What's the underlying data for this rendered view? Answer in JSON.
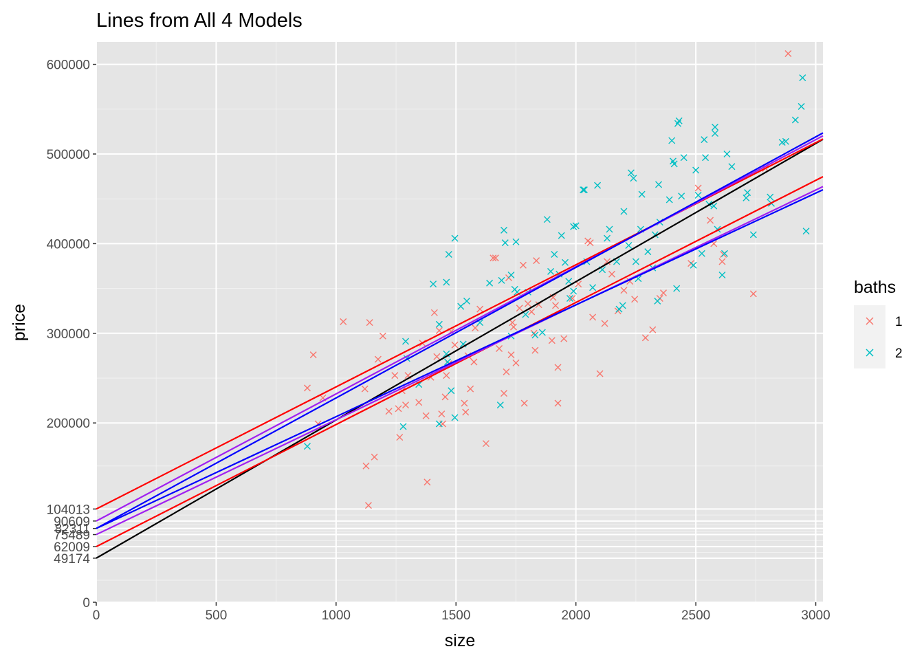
{
  "chart_data": {
    "type": "scatter",
    "title": "Lines from All 4 Models",
    "xlabel": "size",
    "ylabel": "price",
    "xlim": [
      0,
      3030
    ],
    "ylim": [
      0,
      625000
    ],
    "x_ticks": [
      0,
      500,
      1000,
      1500,
      2000,
      2500,
      3000
    ],
    "y_ticks": [
      0,
      200000,
      300000,
      400000,
      500000,
      600000
    ],
    "y_extra_ticks": [
      49174,
      62009,
      75489,
      82311,
      90609,
      104013
    ],
    "grid": true,
    "background": "#e5e5e5",
    "marker": "x",
    "legend": {
      "title": "baths",
      "placement": "right",
      "entries": [
        {
          "label": "1",
          "color": "#f8766d"
        },
        {
          "label": "2",
          "color": "#00bfc4"
        }
      ]
    },
    "series": [
      {
        "name": "1",
        "color": "#f8766d",
        "points": [
          [
            880,
            239000
          ],
          [
            905,
            276000
          ],
          [
            925,
            199000
          ],
          [
            945,
            228000
          ],
          [
            1030,
            313000
          ],
          [
            1120,
            238000
          ],
          [
            1125,
            152000
          ],
          [
            1135,
            108000
          ],
          [
            1140,
            312000
          ],
          [
            1160,
            162000
          ],
          [
            1175,
            271000
          ],
          [
            1195,
            297000
          ],
          [
            1220,
            213000
          ],
          [
            1245,
            253000
          ],
          [
            1260,
            216000
          ],
          [
            1265,
            184000
          ],
          [
            1275,
            236000
          ],
          [
            1290,
            220000
          ],
          [
            1300,
            253000
          ],
          [
            1345,
            223000
          ],
          [
            1360,
            289000
          ],
          [
            1375,
            208000
          ],
          [
            1380,
            134000
          ],
          [
            1395,
            251000
          ],
          [
            1410,
            323000
          ],
          [
            1420,
            274000
          ],
          [
            1430,
            303000
          ],
          [
            1440,
            210000
          ],
          [
            1445,
            199000
          ],
          [
            1455,
            229000
          ],
          [
            1460,
            253000
          ],
          [
            1470,
            266000
          ],
          [
            1480,
            302000
          ],
          [
            1495,
            287000
          ],
          [
            1535,
            222000
          ],
          [
            1540,
            212000
          ],
          [
            1550,
            275000
          ],
          [
            1560,
            238000
          ],
          [
            1575,
            268000
          ],
          [
            1580,
            306000
          ],
          [
            1600,
            327000
          ],
          [
            1625,
            177000
          ],
          [
            1655,
            384000
          ],
          [
            1665,
            384000
          ],
          [
            1680,
            283000
          ],
          [
            1700,
            233000
          ],
          [
            1710,
            257000
          ],
          [
            1720,
            362000
          ],
          [
            1730,
            276000
          ],
          [
            1735,
            312000
          ],
          [
            1740,
            307000
          ],
          [
            1750,
            267000
          ],
          [
            1765,
            328000
          ],
          [
            1780,
            376000
          ],
          [
            1785,
            222000
          ],
          [
            1800,
            333000
          ],
          [
            1815,
            324000
          ],
          [
            1825,
            300000
          ],
          [
            1830,
            281000
          ],
          [
            1835,
            381000
          ],
          [
            1845,
            332000
          ],
          [
            1900,
            292000
          ],
          [
            1905,
            340000
          ],
          [
            1915,
            331000
          ],
          [
            1925,
            262000
          ],
          [
            1925,
            222000
          ],
          [
            1950,
            294000
          ],
          [
            1985,
            339000
          ],
          [
            2010,
            355000
          ],
          [
            2050,
            403000
          ],
          [
            2060,
            401000
          ],
          [
            2070,
            318000
          ],
          [
            2100,
            255000
          ],
          [
            2120,
            311000
          ],
          [
            2130,
            380000
          ],
          [
            2150,
            366000
          ],
          [
            2175,
            325000
          ],
          [
            2200,
            348000
          ],
          [
            2225,
            358000
          ],
          [
            2245,
            338000
          ],
          [
            2290,
            295000
          ],
          [
            2320,
            304000
          ],
          [
            2350,
            339000
          ],
          [
            2365,
            345000
          ],
          [
            2480,
            378000
          ],
          [
            2510,
            462000
          ],
          [
            2560,
            426000
          ],
          [
            2575,
            400000
          ],
          [
            2610,
            380000
          ],
          [
            2615,
            388000
          ],
          [
            2740,
            344000
          ],
          [
            2790,
            484000
          ],
          [
            2885,
            612000
          ]
        ]
      },
      {
        "name": "2",
        "color": "#00bfc4",
        "points": [
          [
            880,
            174000
          ],
          [
            1290,
            291000
          ],
          [
            1295,
            272000
          ],
          [
            1280,
            196000
          ],
          [
            1345,
            243000
          ],
          [
            1405,
            355000
          ],
          [
            1430,
            199000
          ],
          [
            1430,
            310000
          ],
          [
            1460,
            277000
          ],
          [
            1460,
            357000
          ],
          [
            1465,
            268000
          ],
          [
            1470,
            388000
          ],
          [
            1480,
            236000
          ],
          [
            1495,
            206000
          ],
          [
            1495,
            406000
          ],
          [
            1520,
            330000
          ],
          [
            1530,
            288000
          ],
          [
            1545,
            336000
          ],
          [
            1600,
            312000
          ],
          [
            1640,
            356000
          ],
          [
            1685,
            220000
          ],
          [
            1690,
            359000
          ],
          [
            1700,
            415000
          ],
          [
            1705,
            401000
          ],
          [
            1730,
            365000
          ],
          [
            1730,
            297000
          ],
          [
            1745,
            349000
          ],
          [
            1750,
            402000
          ],
          [
            1755,
            346000
          ],
          [
            1790,
            321000
          ],
          [
            1800,
            346000
          ],
          [
            1830,
            298000
          ],
          [
            1860,
            301000
          ],
          [
            1880,
            427000
          ],
          [
            1895,
            369000
          ],
          [
            1910,
            388000
          ],
          [
            1930,
            366000
          ],
          [
            1940,
            409000
          ],
          [
            1955,
            379000
          ],
          [
            1970,
            358000
          ],
          [
            1975,
            339000
          ],
          [
            1990,
            419000
          ],
          [
            1990,
            347000
          ],
          [
            2000,
            420000
          ],
          [
            2030,
            460000
          ],
          [
            2035,
            460000
          ],
          [
            2045,
            380000
          ],
          [
            2070,
            351000
          ],
          [
            2090,
            465000
          ],
          [
            2110,
            371000
          ],
          [
            2130,
            406000
          ],
          [
            2140,
            416000
          ],
          [
            2170,
            380000
          ],
          [
            2180,
            327000
          ],
          [
            2195,
            331000
          ],
          [
            2200,
            436000
          ],
          [
            2220,
            398000
          ],
          [
            2230,
            479000
          ],
          [
            2240,
            473000
          ],
          [
            2250,
            380000
          ],
          [
            2260,
            361000
          ],
          [
            2270,
            416000
          ],
          [
            2275,
            455000
          ],
          [
            2300,
            391000
          ],
          [
            2320,
            373000
          ],
          [
            2330,
            410000
          ],
          [
            2340,
            336000
          ],
          [
            2345,
            466000
          ],
          [
            2350,
            424000
          ],
          [
            2390,
            449000
          ],
          [
            2400,
            515000
          ],
          [
            2405,
            492000
          ],
          [
            2410,
            489000
          ],
          [
            2420,
            350000
          ],
          [
            2425,
            534000
          ],
          [
            2430,
            537000
          ],
          [
            2440,
            453000
          ],
          [
            2450,
            496000
          ],
          [
            2490,
            376000
          ],
          [
            2500,
            482000
          ],
          [
            2510,
            454000
          ],
          [
            2525,
            389000
          ],
          [
            2535,
            516000
          ],
          [
            2540,
            496000
          ],
          [
            2555,
            444000
          ],
          [
            2575,
            442000
          ],
          [
            2580,
            523000
          ],
          [
            2580,
            530000
          ],
          [
            2590,
            416000
          ],
          [
            2610,
            365000
          ],
          [
            2620,
            389000
          ],
          [
            2630,
            500000
          ],
          [
            2650,
            486000
          ],
          [
            2710,
            451000
          ],
          [
            2715,
            457000
          ],
          [
            2740,
            410000
          ],
          [
            2810,
            452000
          ],
          [
            2815,
            445000
          ],
          [
            2860,
            513000
          ],
          [
            2875,
            514000
          ],
          [
            2915,
            538000
          ],
          [
            2940,
            553000
          ],
          [
            2945,
            585000
          ],
          [
            2960,
            414000
          ]
        ]
      }
    ],
    "lines": [
      {
        "color": "#000000",
        "intercept": 49174,
        "slope": 154.2
      },
      {
        "color": "#ff0000",
        "intercept": 62009,
        "slope": 136.2
      },
      {
        "color": "#ff0000",
        "intercept": 104013,
        "slope": 136.2
      },
      {
        "color": "#a020f0",
        "intercept": 75489,
        "slope": 128.1
      },
      {
        "color": "#a020f0",
        "intercept": 90609,
        "slope": 141.8
      },
      {
        "color": "#0000ff",
        "intercept": 82311,
        "slope": 124.7
      },
      {
        "color": "#0000ff",
        "intercept": 82311,
        "slope": 145.6
      }
    ]
  }
}
